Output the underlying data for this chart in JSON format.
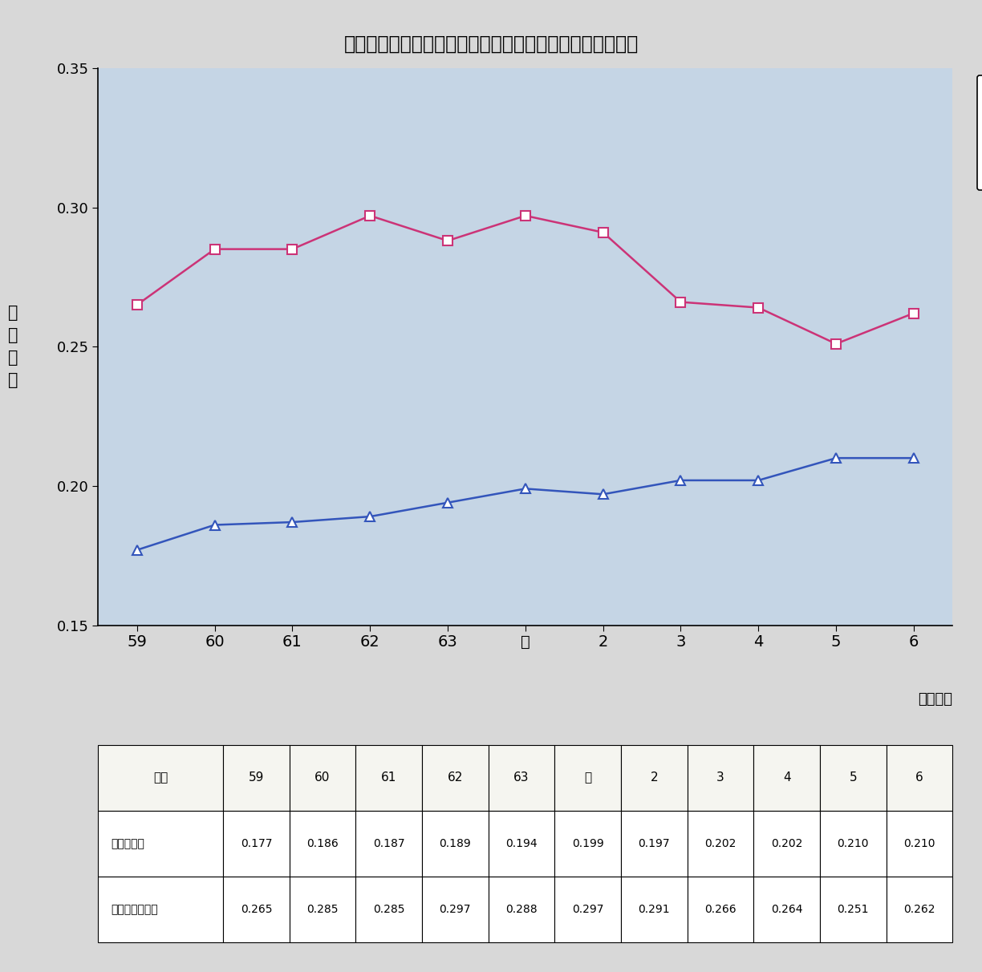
{
  "title": "第１－３－７図　一人当たり情報流通量の変動係数の推移",
  "x_labels": [
    "59",
    "60",
    "61",
    "62",
    "63",
    "元",
    "2",
    "3",
    "4",
    "5",
    "6"
  ],
  "x_label_bottom": "（年度）",
  "ylabel_chars": [
    "変",
    "動",
    "係",
    "数"
  ],
  "ylim": [
    0.15,
    0.35
  ],
  "yticks": [
    0.15,
    0.2,
    0.25,
    0.3,
    0.35
  ],
  "series1_name": "発信情報量",
  "series1_values": [
    0.177,
    0.186,
    0.187,
    0.189,
    0.194,
    0.199,
    0.197,
    0.202,
    0.202,
    0.21,
    0.21
  ],
  "series1_color": "#3355bb",
  "series1_marker": "^",
  "series2_name": "選択可能情報量",
  "series2_values": [
    0.265,
    0.285,
    0.285,
    0.297,
    0.288,
    0.297,
    0.291,
    0.266,
    0.264,
    0.251,
    0.262
  ],
  "series2_color": "#cc3377",
  "series2_marker": "s",
  "bg_color": "#c5d5e5",
  "outer_bg": "#d8d8d8",
  "table_header": [
    "年度",
    "59",
    "60",
    "61",
    "62",
    "63",
    "元",
    "2",
    "3",
    "4",
    "5",
    "6"
  ],
  "table_row1_label": "発信情報量",
  "table_row1": [
    "0.177",
    "0.186",
    "0.187",
    "0.189",
    "0.194",
    "0.199",
    "0.197",
    "0.202",
    "0.202",
    "0.210",
    "0.210"
  ],
  "table_row2_label": "選択可能情報量",
  "table_row2": [
    "0.265",
    "0.285",
    "0.285",
    "0.297",
    "0.288",
    "0.297",
    "0.291",
    "0.266",
    "0.264",
    "0.251",
    "0.262"
  ]
}
